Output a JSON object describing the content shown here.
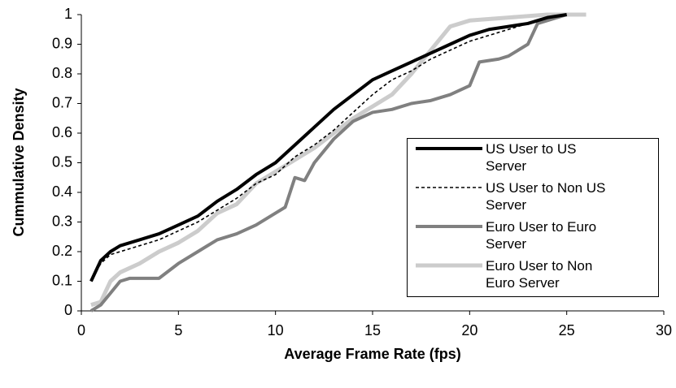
{
  "chart_data": {
    "type": "line",
    "xlabel": "Average Frame Rate (fps)",
    "ylabel": "Cummulative Density",
    "xlim": [
      0,
      30
    ],
    "xticks": [
      0,
      5,
      10,
      15,
      20,
      25,
      30
    ],
    "ylim": [
      0,
      1
    ],
    "yticks": [
      0,
      0.1,
      0.2,
      0.3,
      0.4,
      0.5,
      0.6,
      0.7,
      0.8,
      0.9,
      1
    ],
    "legend": "lower right",
    "series": [
      {
        "name": "US User to US Server",
        "color": "#000000",
        "x": [
          0.5,
          1,
          1.5,
          2,
          3,
          4,
          5,
          6,
          7,
          8,
          9,
          10,
          11,
          12,
          13,
          14,
          15,
          16,
          17,
          18,
          19,
          20,
          21,
          22,
          23,
          24,
          25
        ],
        "values": [
          0.1,
          0.17,
          0.2,
          0.22,
          0.24,
          0.26,
          0.29,
          0.32,
          0.37,
          0.41,
          0.46,
          0.5,
          0.56,
          0.62,
          0.68,
          0.73,
          0.78,
          0.81,
          0.84,
          0.87,
          0.9,
          0.93,
          0.95,
          0.96,
          0.97,
          0.99,
          1
        ]
      },
      {
        "name": "US User to Non US Server",
        "color": "#000000",
        "x": [
          0.5,
          1,
          1.5,
          2,
          3,
          4,
          5,
          6,
          7,
          8,
          9,
          10,
          11,
          12,
          13,
          14,
          15,
          16,
          17,
          18,
          19,
          20,
          21,
          22,
          23,
          24,
          25
        ],
        "values": [
          0.1,
          0.16,
          0.19,
          0.2,
          0.22,
          0.24,
          0.27,
          0.3,
          0.34,
          0.38,
          0.43,
          0.46,
          0.52,
          0.56,
          0.61,
          0.67,
          0.73,
          0.78,
          0.81,
          0.85,
          0.88,
          0.91,
          0.93,
          0.95,
          0.97,
          0.99,
          1
        ]
      },
      {
        "name": "Euro User to Euro Server",
        "color": "#808080",
        "x": [
          0.5,
          1,
          1.5,
          2,
          2.5,
          4,
          5,
          6,
          7,
          8,
          9,
          10,
          10.5,
          11,
          11.5,
          12,
          13,
          14,
          15,
          16,
          17,
          18,
          19,
          20,
          20.5,
          21.5,
          22,
          23,
          23.5,
          24,
          25
        ],
        "values": [
          0,
          0.02,
          0.06,
          0.1,
          0.11,
          0.11,
          0.16,
          0.2,
          0.24,
          0.26,
          0.29,
          0.33,
          0.35,
          0.45,
          0.44,
          0.5,
          0.58,
          0.64,
          0.67,
          0.68,
          0.7,
          0.71,
          0.73,
          0.76,
          0.84,
          0.85,
          0.86,
          0.9,
          0.97,
          0.98,
          1
        ]
      },
      {
        "name": "Euro User to Non Euro Server",
        "color": "#cccccc",
        "x": [
          0.5,
          1,
          1.5,
          2,
          3,
          4,
          5,
          6,
          7,
          8,
          9,
          10,
          11,
          12,
          13,
          14,
          15,
          16,
          17,
          18,
          19,
          20,
          22,
          24,
          26
        ],
        "values": [
          0.02,
          0.03,
          0.1,
          0.13,
          0.16,
          0.2,
          0.23,
          0.27,
          0.33,
          0.36,
          0.43,
          0.47,
          0.51,
          0.55,
          0.6,
          0.65,
          0.69,
          0.73,
          0.8,
          0.88,
          0.96,
          0.98,
          0.99,
          1,
          1
        ]
      }
    ]
  }
}
